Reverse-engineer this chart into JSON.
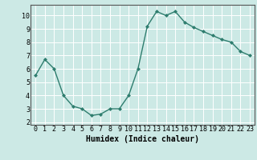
{
  "x": [
    0,
    1,
    2,
    3,
    4,
    5,
    6,
    7,
    8,
    9,
    10,
    11,
    12,
    13,
    14,
    15,
    16,
    17,
    18,
    19,
    20,
    21,
    22,
    23
  ],
  "y": [
    5.5,
    6.7,
    6.0,
    4.0,
    3.2,
    3.0,
    2.5,
    2.6,
    3.0,
    3.0,
    4.0,
    6.0,
    9.2,
    10.3,
    10.0,
    10.3,
    9.5,
    9.1,
    8.8,
    8.5,
    8.2,
    8.0,
    7.3,
    7.0
  ],
  "line_color": "#2e7d6e",
  "marker": "D",
  "marker_size": 2.0,
  "linewidth": 1.0,
  "background_color": "#cce9e5",
  "grid_color": "#ffffff",
  "xlabel": "Humidex (Indice chaleur)",
  "xlim": [
    -0.5,
    23.5
  ],
  "ylim": [
    1.8,
    10.8
  ],
  "yticks": [
    2,
    3,
    4,
    5,
    6,
    7,
    8,
    9,
    10
  ],
  "xticks": [
    0,
    1,
    2,
    3,
    4,
    5,
    6,
    7,
    8,
    9,
    10,
    11,
    12,
    13,
    14,
    15,
    16,
    17,
    18,
    19,
    20,
    21,
    22,
    23
  ],
  "xlabel_fontsize": 7,
  "tick_fontsize": 6
}
